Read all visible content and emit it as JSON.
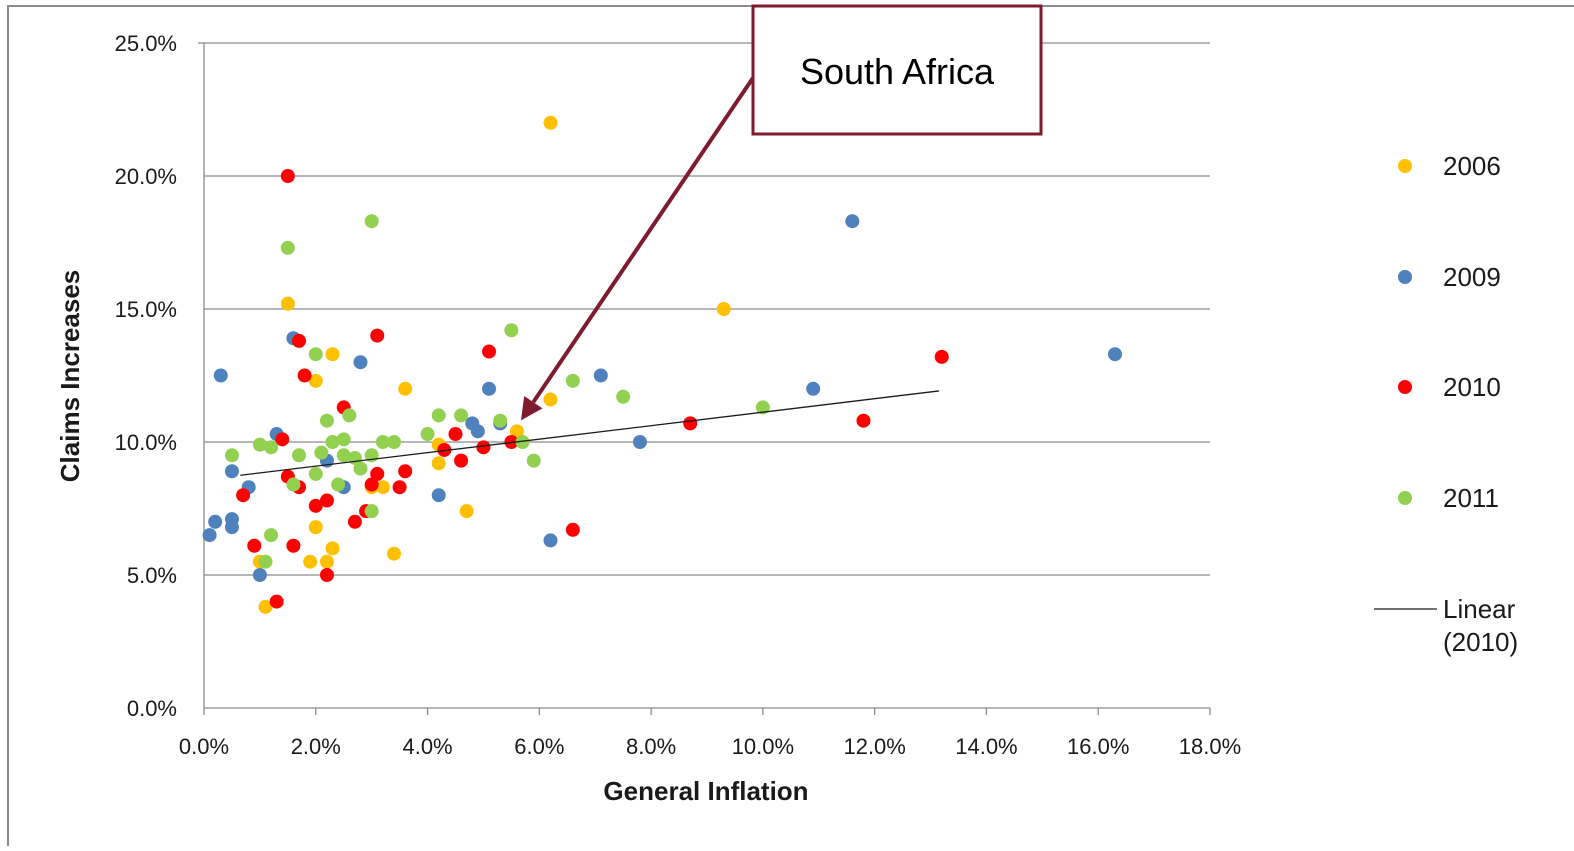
{
  "chart_data": {
    "type": "scatter",
    "xlabel": "General Inflation",
    "ylabel": "Claims Increases",
    "xlim": [
      0,
      0.18
    ],
    "ylim": [
      0,
      0.25
    ],
    "x_ticks": [
      "0.0%",
      "2.0%",
      "4.0%",
      "6.0%",
      "8.0%",
      "10.0%",
      "12.0%",
      "14.0%",
      "16.0%",
      "18.0%"
    ],
    "y_ticks": [
      "0.0%",
      "5.0%",
      "10.0%",
      "15.0%",
      "20.0%",
      "25.0%"
    ],
    "grid": "horizontal",
    "legend_position": "right",
    "annotation": {
      "text": "South Africa",
      "x": 0.056,
      "y": 0.104,
      "border_color": "#7f1b2e"
    },
    "series": [
      {
        "name": "2006",
        "color": "#ffc000",
        "points": [
          [
            0.062,
            0.22
          ],
          [
            0.015,
            0.152
          ],
          [
            0.093,
            0.15
          ],
          [
            0.023,
            0.133
          ],
          [
            0.02,
            0.123
          ],
          [
            0.036,
            0.12
          ],
          [
            0.062,
            0.116
          ],
          [
            0.042,
            0.099
          ],
          [
            0.042,
            0.092
          ],
          [
            0.032,
            0.083
          ],
          [
            0.047,
            0.074
          ],
          [
            0.02,
            0.068
          ],
          [
            0.023,
            0.06
          ],
          [
            0.034,
            0.058
          ],
          [
            0.019,
            0.055
          ],
          [
            0.022,
            0.055
          ],
          [
            0.01,
            0.055
          ],
          [
            0.011,
            0.038
          ],
          [
            0.03,
            0.083
          ],
          [
            0.056,
            0.104
          ]
        ]
      },
      {
        "name": "2009",
        "color": "#4f81bd",
        "points": [
          [
            0.003,
            0.125
          ],
          [
            0.016,
            0.139
          ],
          [
            0.028,
            0.13
          ],
          [
            0.013,
            0.103
          ],
          [
            0.022,
            0.093
          ],
          [
            0.005,
            0.089
          ],
          [
            0.008,
            0.083
          ],
          [
            0.025,
            0.083
          ],
          [
            0.042,
            0.08
          ],
          [
            0.002,
            0.07
          ],
          [
            0.005,
            0.071
          ],
          [
            0.005,
            0.068
          ],
          [
            0.001,
            0.065
          ],
          [
            0.01,
            0.05
          ],
          [
            0.051,
            0.12
          ],
          [
            0.048,
            0.107
          ],
          [
            0.049,
            0.104
          ],
          [
            0.053,
            0.107
          ],
          [
            0.062,
            0.063
          ],
          [
            0.071,
            0.125
          ],
          [
            0.078,
            0.1
          ],
          [
            0.109,
            0.12
          ],
          [
            0.116,
            0.183
          ],
          [
            0.163,
            0.133
          ]
        ]
      },
      {
        "name": "2010",
        "color": "#ff0000",
        "points": [
          [
            0.015,
            0.2
          ],
          [
            0.031,
            0.14
          ],
          [
            0.017,
            0.138
          ],
          [
            0.051,
            0.134
          ],
          [
            0.018,
            0.125
          ],
          [
            0.025,
            0.113
          ],
          [
            0.014,
            0.101
          ],
          [
            0.045,
            0.103
          ],
          [
            0.043,
            0.097
          ],
          [
            0.05,
            0.098
          ],
          [
            0.055,
            0.1
          ],
          [
            0.046,
            0.093
          ],
          [
            0.036,
            0.089
          ],
          [
            0.031,
            0.088
          ],
          [
            0.015,
            0.087
          ],
          [
            0.03,
            0.084
          ],
          [
            0.035,
            0.083
          ],
          [
            0.017,
            0.083
          ],
          [
            0.007,
            0.08
          ],
          [
            0.022,
            0.078
          ],
          [
            0.02,
            0.076
          ],
          [
            0.029,
            0.074
          ],
          [
            0.027,
            0.07
          ],
          [
            0.009,
            0.061
          ],
          [
            0.016,
            0.061
          ],
          [
            0.066,
            0.067
          ],
          [
            0.022,
            0.05
          ],
          [
            0.013,
            0.04
          ],
          [
            0.087,
            0.107
          ],
          [
            0.118,
            0.108
          ],
          [
            0.132,
            0.132
          ]
        ]
      },
      {
        "name": "2011",
        "color": "#92d050",
        "points": [
          [
            0.03,
            0.183
          ],
          [
            0.015,
            0.173
          ],
          [
            0.02,
            0.133
          ],
          [
            0.055,
            0.142
          ],
          [
            0.066,
            0.123
          ],
          [
            0.075,
            0.117
          ],
          [
            0.1,
            0.113
          ],
          [
            0.022,
            0.108
          ],
          [
            0.026,
            0.11
          ],
          [
            0.042,
            0.11
          ],
          [
            0.046,
            0.11
          ],
          [
            0.053,
            0.108
          ],
          [
            0.04,
            0.103
          ],
          [
            0.025,
            0.101
          ],
          [
            0.023,
            0.1
          ],
          [
            0.032,
            0.1
          ],
          [
            0.034,
            0.1
          ],
          [
            0.012,
            0.098
          ],
          [
            0.01,
            0.099
          ],
          [
            0.021,
            0.096
          ],
          [
            0.027,
            0.094
          ],
          [
            0.025,
            0.095
          ],
          [
            0.03,
            0.095
          ],
          [
            0.017,
            0.095
          ],
          [
            0.005,
            0.095
          ],
          [
            0.028,
            0.09
          ],
          [
            0.02,
            0.088
          ],
          [
            0.016,
            0.084
          ],
          [
            0.024,
            0.084
          ],
          [
            0.03,
            0.074
          ],
          [
            0.012,
            0.065
          ],
          [
            0.011,
            0.055
          ],
          [
            0.057,
            0.1
          ],
          [
            0.059,
            0.093
          ]
        ]
      }
    ],
    "trendline": {
      "name": "Linear (2010)",
      "legend_label_lines": [
        "Linear",
        "(2010)"
      ],
      "color": "#1a1a1a",
      "from": [
        0.0065,
        0.0875
      ],
      "to": [
        0.1315,
        0.1192
      ]
    }
  }
}
